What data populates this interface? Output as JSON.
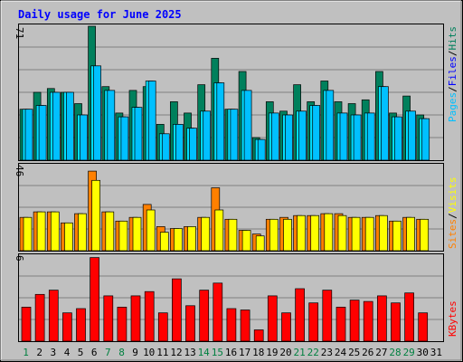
{
  "title": "Daily usage for June 2025",
  "colors": {
    "background": "#c0c0c0",
    "title": "#0000ff",
    "hits": "#00805c",
    "files": "#00e0ff",
    "pages": "#00c0ff",
    "visits": "#ff8000",
    "sites": "#ffff00",
    "kbytes": "#ff0000",
    "weekday": "#008040",
    "weekend": "#008040"
  },
  "labels": {
    "top_max": "71",
    "mid_max": "46",
    "bottom_max": "6",
    "hits": "Hits",
    "files": "Files",
    "pages": "Pages",
    "visits": "Visits",
    "sites": "Sites",
    "kbytes": "KBytes",
    "separator": "/"
  },
  "chart_data": {
    "type": "bar",
    "title": "Daily usage for June 2025",
    "categories": [
      "1",
      "2",
      "3",
      "4",
      "5",
      "6",
      "7",
      "8",
      "9",
      "10",
      "11",
      "12",
      "13",
      "14",
      "15",
      "16",
      "17",
      "18",
      "19",
      "20",
      "21",
      "22",
      "23",
      "24",
      "25",
      "26",
      "27",
      "28",
      "29",
      "30",
      "31"
    ],
    "weekend_days": [
      1,
      7,
      8,
      14,
      15,
      21,
      22,
      28,
      29
    ],
    "panels": [
      {
        "name": "top",
        "ymax": 71,
        "series": [
          {
            "name": "Hits",
            "values": [
              27,
              36,
              38,
              36,
              30,
              71,
              39,
              25,
              37,
              39,
              19,
              31,
              25,
              40,
              54,
              27,
              47,
              12,
              31,
              26,
              40,
              31,
              42,
              31,
              30,
              32,
              47,
              25,
              34,
              24,
              null
            ]
          },
          {
            "name": "Files",
            "values": [
              27,
              29,
              36,
              36,
              24,
              50,
              37,
              23,
              28,
              42,
              14,
              19,
              17,
              26,
              41,
              27,
              37,
              11,
              25,
              24,
              26,
              29,
              37,
              25,
              24,
              25,
              39,
              23,
              26,
              22,
              null
            ]
          },
          {
            "name": "Pages",
            "values": [
              27,
              29,
              36,
              36,
              24,
              50,
              37,
              23,
              28,
              42,
              14,
              19,
              17,
              26,
              41,
              27,
              37,
              11,
              25,
              24,
              26,
              29,
              37,
              25,
              24,
              25,
              39,
              23,
              26,
              22,
              null
            ]
          }
        ]
      },
      {
        "name": "middle",
        "ymax": 46,
        "series": [
          {
            "name": "Visits",
            "values": [
              18,
              21,
              21,
              15,
              20,
              43,
              21,
              16,
              18,
              25,
              13,
              12,
              13,
              18,
              34,
              17,
              11,
              9,
              17,
              18,
              19,
              19,
              20,
              20,
              18,
              18,
              19,
              16,
              18,
              17,
              null
            ]
          },
          {
            "name": "Sites",
            "values": [
              18,
              21,
              21,
              15,
              20,
              38,
              21,
              16,
              18,
              22,
              10,
              12,
              13,
              18,
              22,
              17,
              11,
              8,
              17,
              17,
              19,
              19,
              20,
              19,
              18,
              18,
              19,
              16,
              18,
              17,
              null
            ]
          }
        ]
      },
      {
        "name": "bottom",
        "ymax": 6,
        "series": [
          {
            "name": "KBytes",
            "values": [
              2.4,
              3.3,
              3.6,
              2.0,
              2.3,
              5.9,
              3.2,
              2.4,
              3.2,
              3.5,
              2.0,
              4.4,
              2.5,
              3.6,
              4.1,
              2.3,
              2.2,
              0.8,
              3.2,
              2.0,
              3.7,
              2.7,
              3.6,
              2.4,
              2.9,
              2.8,
              3.2,
              2.7,
              3.4,
              2.0,
              null
            ]
          }
        ]
      }
    ]
  }
}
